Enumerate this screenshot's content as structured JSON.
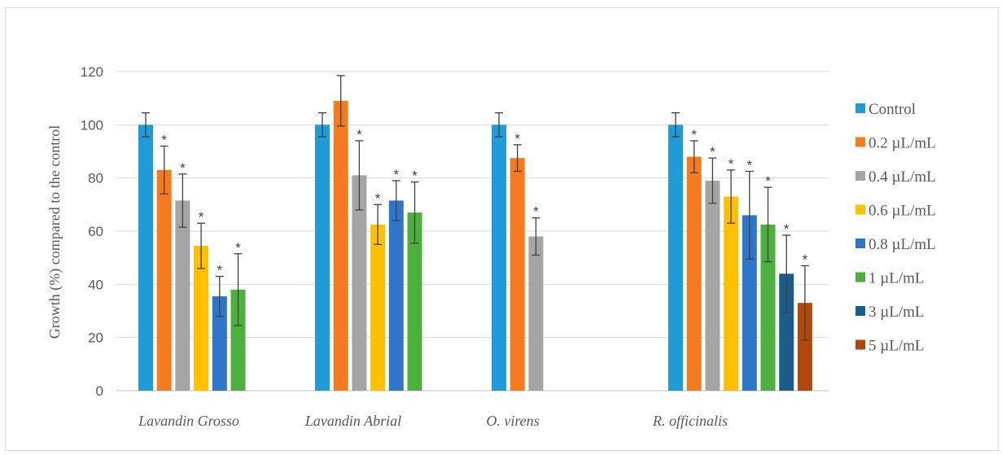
{
  "chart_data": {
    "type": "bar",
    "title": "",
    "xlabel": "",
    "ylabel": "Growth (%)  compared to the control",
    "ylim": [
      0,
      120
    ],
    "yticks": [
      0,
      20,
      40,
      60,
      80,
      100,
      120
    ],
    "grid": true,
    "legend_position": "right",
    "categories": [
      "Lavandin Grosso",
      "Lavandin Abrial",
      "O. virens",
      "R. officinalis"
    ],
    "series": [
      {
        "name": "Control",
        "color": "#1f9bd7",
        "values": [
          100,
          100,
          100,
          100
        ],
        "errors": [
          4.5,
          4.5,
          4.5,
          4.5
        ],
        "significant": [
          false,
          false,
          false,
          false
        ]
      },
      {
        "name": "0.2 µL/mL",
        "color": "#f47b20",
        "values": [
          83,
          109,
          87.5,
          88
        ],
        "errors": [
          9,
          9.5,
          5,
          6
        ],
        "significant": [
          true,
          false,
          true,
          true
        ]
      },
      {
        "name": "0.4 µL/mL",
        "color": "#a5a5a5",
        "values": [
          71.5,
          81,
          58,
          79
        ],
        "errors": [
          10,
          13,
          7,
          8.5
        ],
        "significant": [
          true,
          true,
          true,
          true
        ]
      },
      {
        "name": "0.6 µL/mL",
        "color": "#ffc000",
        "values": [
          54.5,
          62.5,
          null,
          73
        ],
        "errors": [
          8.5,
          7.5,
          null,
          10
        ],
        "significant": [
          true,
          true,
          false,
          true
        ]
      },
      {
        "name": "0.8 µL/mL",
        "color": "#2f75c9",
        "values": [
          35.5,
          71.5,
          null,
          66
        ],
        "errors": [
          7.5,
          7.5,
          null,
          16.5
        ],
        "significant": [
          true,
          true,
          false,
          true
        ]
      },
      {
        "name": "1 µL/mL",
        "color": "#4caf3e",
        "values": [
          38,
          67,
          null,
          62.5
        ],
        "errors": [
          13.5,
          11.5,
          null,
          14
        ],
        "significant": [
          true,
          true,
          false,
          true
        ]
      },
      {
        "name": "3 µL/mL",
        "color": "#1b5c8c",
        "values": [
          null,
          null,
          null,
          44
        ],
        "errors": [
          null,
          null,
          null,
          14.5
        ],
        "significant": [
          false,
          false,
          false,
          true
        ]
      },
      {
        "name": "5 µL/mL",
        "color": "#b2470e",
        "values": [
          null,
          null,
          null,
          33
        ],
        "errors": [
          null,
          null,
          null,
          14
        ],
        "significant": [
          false,
          false,
          false,
          true
        ]
      }
    ],
    "significance_marker": "*"
  }
}
